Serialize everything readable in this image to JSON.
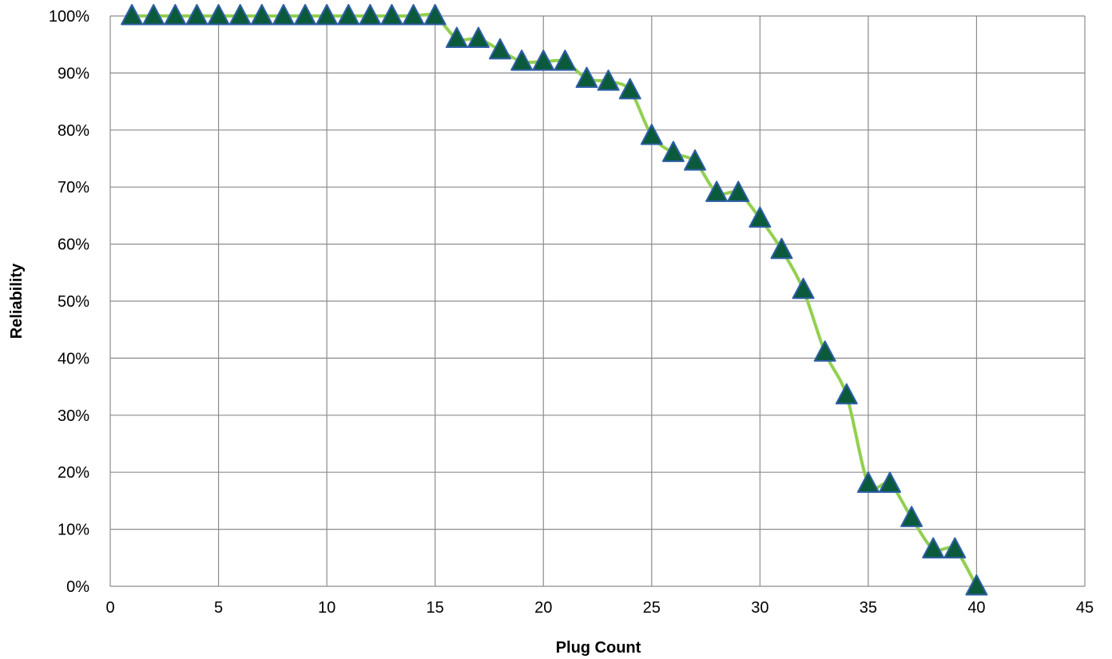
{
  "chart_data": {
    "type": "line",
    "xlabel": "Plug Count",
    "ylabel": "Reliability",
    "xlim": [
      0,
      45
    ],
    "ylim": [
      0,
      1
    ],
    "x_ticks": [
      "0",
      "5",
      "10",
      "15",
      "20",
      "25",
      "30",
      "35",
      "40",
      "45"
    ],
    "y_ticks": [
      "0%",
      "10%",
      "20%",
      "30%",
      "40%",
      "50%",
      "60%",
      "70%",
      "80%",
      "90%",
      "100%"
    ],
    "grid": true,
    "legend": "none",
    "line_color": "#92d050",
    "marker": "triangle",
    "marker_fill": "#0b5a3c",
    "marker_edge": "#2e5fa6",
    "series": [
      {
        "x": [
          1,
          2,
          3,
          4,
          5,
          6,
          7,
          8,
          9,
          10,
          11,
          12,
          13,
          14,
          15,
          16,
          17,
          18,
          19,
          20,
          21,
          22,
          23,
          24,
          25,
          26,
          27,
          28,
          29,
          30,
          31,
          32,
          33,
          34,
          35,
          36,
          37,
          38,
          39,
          40
        ],
        "values": [
          1.0,
          1.0,
          1.0,
          1.0,
          1.0,
          1.0,
          1.0,
          1.0,
          1.0,
          1.0,
          1.0,
          1.0,
          1.0,
          1.0,
          1.0,
          0.96,
          0.96,
          0.94,
          0.92,
          0.92,
          0.92,
          0.89,
          0.885,
          0.87,
          0.79,
          0.76,
          0.745,
          0.69,
          0.69,
          0.645,
          0.59,
          0.52,
          0.41,
          0.335,
          0.18,
          0.18,
          0.12,
          0.065,
          0.065,
          0.0
        ]
      }
    ]
  }
}
